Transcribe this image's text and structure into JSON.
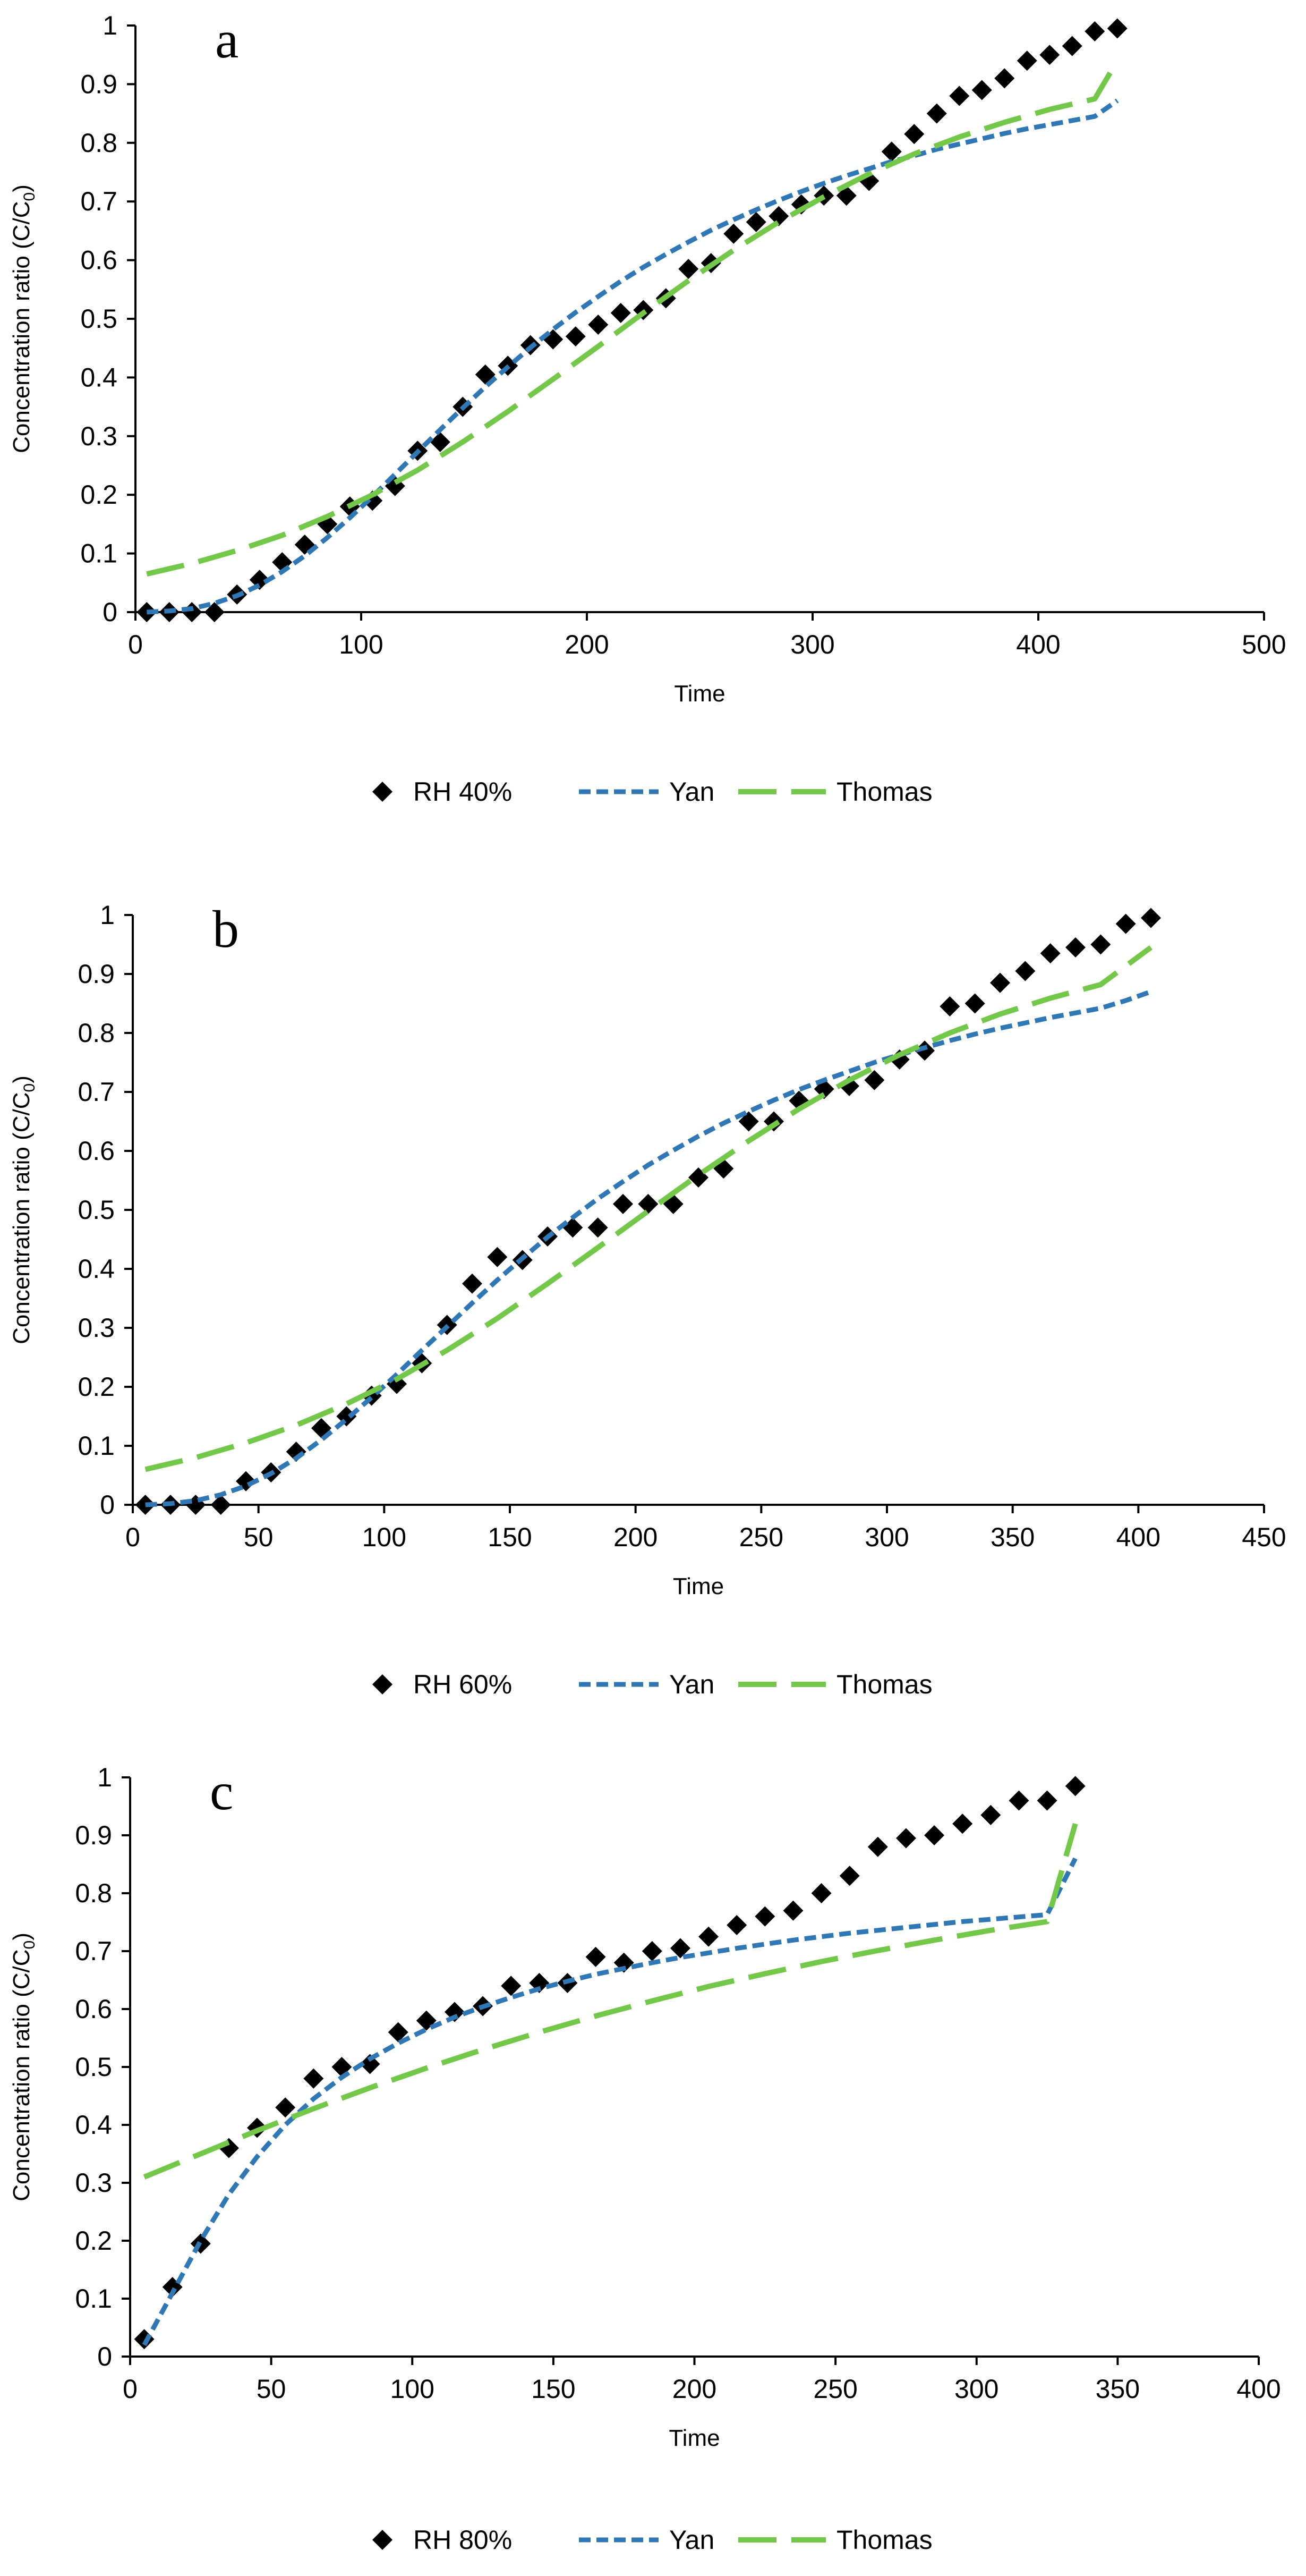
{
  "colors": {
    "observed": "#000000",
    "yan": "#2f78b5",
    "thomas": "#73c84a"
  },
  "chart_data": [
    {
      "type": "line",
      "panel_label": "a",
      "title": "",
      "xlabel": "Time",
      "ylabel": "Concentration ratio (C/C",
      "ylabel_sub": "0",
      "ylabel_tail": ")",
      "xlim": [
        0,
        500
      ],
      "ylim": [
        0,
        1
      ],
      "xticks": [
        "0",
        "100",
        "200",
        "300",
        "400",
        "500"
      ],
      "yticks": [
        "0",
        "0.1",
        "0.2",
        "0.3",
        "0.4",
        "0.5",
        "0.6",
        "0.7",
        "0.8",
        "0.9",
        "1"
      ],
      "legend": [
        "RH 40%",
        "Yan",
        "Thomas"
      ],
      "series": [
        {
          "name": "RH 40%",
          "style": "markers",
          "x": [
            5,
            15,
            25,
            35,
            45,
            55,
            65,
            75,
            85,
            95,
            105,
            115,
            125,
            135,
            145,
            155,
            165,
            175,
            185,
            195,
            205,
            215,
            225,
            235,
            245,
            255,
            265,
            275,
            285,
            295,
            305,
            315,
            325,
            335,
            345,
            355,
            365,
            375,
            385,
            395,
            405,
            415,
            425,
            435
          ],
          "y": [
            0.0,
            0.0,
            0.0,
            0.0,
            0.03,
            0.055,
            0.085,
            0.115,
            0.15,
            0.18,
            0.19,
            0.215,
            0.275,
            0.29,
            0.35,
            0.405,
            0.42,
            0.455,
            0.465,
            0.47,
            0.49,
            0.51,
            0.515,
            0.535,
            0.585,
            0.595,
            0.645,
            0.665,
            0.675,
            0.695,
            0.71,
            0.71,
            0.735,
            0.785,
            0.815,
            0.85,
            0.88,
            0.89,
            0.91,
            0.94,
            0.95,
            0.965,
            0.99,
            0.995
          ]
        },
        {
          "name": "Yan",
          "style": "dashed",
          "x": [
            5,
            15,
            25,
            35,
            45,
            55,
            65,
            75,
            85,
            95,
            105,
            115,
            125,
            135,
            145,
            155,
            165,
            175,
            185,
            195,
            205,
            215,
            225,
            235,
            245,
            255,
            265,
            275,
            285,
            295,
            305,
            315,
            325,
            335,
            345,
            355,
            365,
            375,
            385,
            395,
            405,
            415,
            425,
            435
          ],
          "y": [
            0.0,
            0.002,
            0.006,
            0.015,
            0.028,
            0.046,
            0.069,
            0.096,
            0.127,
            0.161,
            0.197,
            0.235,
            0.273,
            0.311,
            0.348,
            0.384,
            0.418,
            0.451,
            0.482,
            0.511,
            0.538,
            0.564,
            0.588,
            0.61,
            0.631,
            0.651,
            0.669,
            0.686,
            0.702,
            0.717,
            0.731,
            0.744,
            0.756,
            0.768,
            0.778,
            0.789,
            0.798,
            0.807,
            0.816,
            0.824,
            0.831,
            0.838,
            0.845,
            0.872
          ]
        },
        {
          "name": "Thomas",
          "style": "long-dashed",
          "x": [
            5,
            25,
            45,
            65,
            85,
            105,
            125,
            145,
            165,
            185,
            205,
            225,
            245,
            265,
            285,
            305,
            325,
            345,
            365,
            385,
            405,
            425,
            435
          ],
          "y": [
            0.065,
            0.083,
            0.105,
            0.131,
            0.163,
            0.2,
            0.242,
            0.29,
            0.342,
            0.397,
            0.453,
            0.51,
            0.565,
            0.617,
            0.665,
            0.708,
            0.747,
            0.781,
            0.81,
            0.835,
            0.857,
            0.875,
            0.94
          ]
        }
      ]
    },
    {
      "type": "line",
      "panel_label": "b",
      "title": "",
      "xlabel": "Time",
      "ylabel": "Concentration ratio (C/C",
      "ylabel_sub": "0",
      "ylabel_tail": ")",
      "xlim": [
        0,
        450
      ],
      "ylim": [
        0,
        1
      ],
      "xticks": [
        "0",
        "50",
        "100",
        "150",
        "200",
        "250",
        "300",
        "350",
        "400",
        "450"
      ],
      "yticks": [
        "0",
        "0.1",
        "0.2",
        "0.3",
        "0.4",
        "0.5",
        "0.6",
        "0.7",
        "0.8",
        "0.9",
        "1"
      ],
      "legend": [
        "RH 60%",
        "Yan",
        "Thomas"
      ],
      "series": [
        {
          "name": "RH 60%",
          "style": "markers",
          "x": [
            5,
            15,
            25,
            35,
            45,
            55,
            65,
            75,
            85,
            95,
            105,
            115,
            125,
            135,
            145,
            155,
            165,
            175,
            185,
            195,
            205,
            215,
            225,
            235,
            245,
            255,
            265,
            275,
            285,
            295,
            305,
            315,
            325,
            335,
            345,
            355,
            365,
            375,
            385,
            395,
            405
          ],
          "y": [
            0.0,
            0.0,
            0.0,
            0.0,
            0.04,
            0.055,
            0.09,
            0.13,
            0.15,
            0.185,
            0.205,
            0.24,
            0.305,
            0.375,
            0.42,
            0.415,
            0.455,
            0.47,
            0.47,
            0.51,
            0.51,
            0.51,
            0.555,
            0.57,
            0.65,
            0.65,
            0.685,
            0.705,
            0.71,
            0.72,
            0.755,
            0.77,
            0.845,
            0.85,
            0.885,
            0.905,
            0.935,
            0.945,
            0.95,
            0.985,
            0.995
          ]
        },
        {
          "name": "Yan",
          "style": "dashed",
          "x": [
            5,
            15,
            25,
            35,
            45,
            55,
            65,
            75,
            85,
            95,
            105,
            115,
            125,
            135,
            145,
            155,
            165,
            175,
            185,
            195,
            205,
            215,
            225,
            235,
            245,
            255,
            265,
            275,
            285,
            295,
            305,
            315,
            325,
            335,
            345,
            355,
            365,
            375,
            385,
            395,
            405
          ],
          "y": [
            0.0,
            0.002,
            0.007,
            0.017,
            0.032,
            0.053,
            0.079,
            0.11,
            0.145,
            0.182,
            0.221,
            0.262,
            0.302,
            0.342,
            0.381,
            0.418,
            0.454,
            0.487,
            0.519,
            0.548,
            0.576,
            0.601,
            0.625,
            0.647,
            0.667,
            0.686,
            0.704,
            0.72,
            0.735,
            0.75,
            0.763,
            0.775,
            0.787,
            0.798,
            0.808,
            0.817,
            0.826,
            0.834,
            0.842,
            0.855,
            0.87
          ]
        },
        {
          "name": "Thomas",
          "style": "long-dashed",
          "x": [
            5,
            25,
            45,
            65,
            85,
            105,
            125,
            145,
            165,
            185,
            205,
            225,
            245,
            265,
            285,
            305,
            325,
            345,
            365,
            385,
            405
          ],
          "y": [
            0.06,
            0.08,
            0.105,
            0.135,
            0.171,
            0.213,
            0.262,
            0.316,
            0.375,
            0.436,
            0.498,
            0.559,
            0.617,
            0.671,
            0.72,
            0.763,
            0.8,
            0.832,
            0.859,
            0.882,
            0.945
          ]
        }
      ]
    },
    {
      "type": "line",
      "panel_label": "c",
      "title": "",
      "xlabel": "Time",
      "ylabel": "Concentration ratio (C/C",
      "ylabel_sub": "0",
      "ylabel_tail": ")",
      "xlim": [
        0,
        400
      ],
      "ylim": [
        0,
        1
      ],
      "xticks": [
        "0",
        "50",
        "100",
        "150",
        "200",
        "250",
        "300",
        "350",
        "400"
      ],
      "yticks": [
        "0",
        "0.1",
        "0.2",
        "0.3",
        "0.4",
        "0.5",
        "0.6",
        "0.7",
        "0.8",
        "0.9",
        "1"
      ],
      "legend": [
        "RH 80%",
        "Yan",
        "Thomas"
      ],
      "series": [
        {
          "name": "RH 80%",
          "style": "markers",
          "x": [
            5,
            15,
            25,
            35,
            45,
            55,
            65,
            75,
            85,
            95,
            105,
            115,
            125,
            135,
            145,
            155,
            165,
            175,
            185,
            195,
            205,
            215,
            225,
            235,
            245,
            255,
            265,
            275,
            285,
            295,
            305,
            315,
            325,
            335
          ],
          "y": [
            0.03,
            0.12,
            0.195,
            0.36,
            0.395,
            0.43,
            0.48,
            0.5,
            0.505,
            0.56,
            0.58,
            0.595,
            0.605,
            0.64,
            0.645,
            0.645,
            0.69,
            0.68,
            0.7,
            0.705,
            0.725,
            0.745,
            0.76,
            0.77,
            0.8,
            0.83,
            0.88,
            0.895,
            0.9,
            0.92,
            0.935,
            0.96,
            0.96,
            0.985
          ]
        },
        {
          "name": "Yan",
          "style": "dashed",
          "x": [
            5,
            15,
            25,
            35,
            45,
            55,
            65,
            75,
            85,
            95,
            105,
            115,
            125,
            135,
            145,
            155,
            165,
            175,
            185,
            195,
            205,
            215,
            225,
            235,
            245,
            255,
            265,
            275,
            285,
            295,
            305,
            315,
            325,
            335
          ],
          "y": [
            0.02,
            0.11,
            0.2,
            0.28,
            0.345,
            0.4,
            0.445,
            0.482,
            0.514,
            0.541,
            0.565,
            0.586,
            0.604,
            0.62,
            0.635,
            0.648,
            0.66,
            0.67,
            0.68,
            0.689,
            0.697,
            0.705,
            0.712,
            0.719,
            0.725,
            0.731,
            0.736,
            0.741,
            0.746,
            0.751,
            0.755,
            0.759,
            0.763,
            0.86
          ]
        },
        {
          "name": "Thomas",
          "style": "long-dashed",
          "x": [
            5,
            25,
            45,
            65,
            85,
            105,
            125,
            145,
            165,
            185,
            205,
            225,
            245,
            265,
            285,
            305,
            325,
            335
          ],
          "y": [
            0.31,
            0.35,
            0.39,
            0.428,
            0.464,
            0.498,
            0.53,
            0.56,
            0.588,
            0.614,
            0.639,
            0.661,
            0.682,
            0.701,
            0.719,
            0.736,
            0.751,
            0.92
          ]
        }
      ]
    }
  ]
}
